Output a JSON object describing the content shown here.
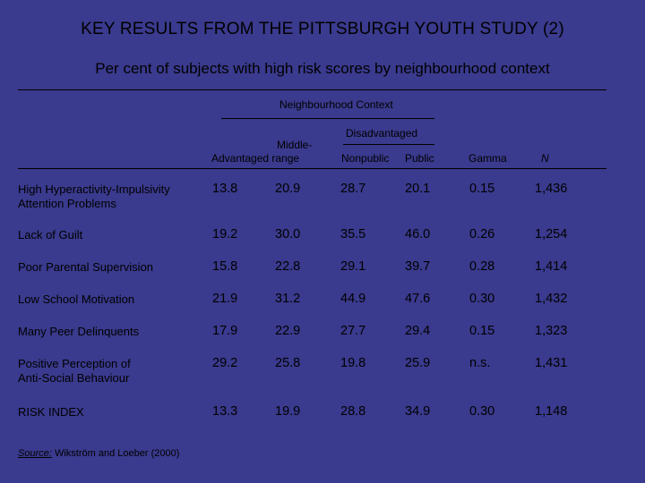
{
  "title": "KEY RESULTS FROM THE PITTSBURGH YOUTH STUDY (2)",
  "subtitle": "Per cent of subjects with high risk scores by neighbourhood context",
  "header": {
    "group": "Neighbourhood Context",
    "disadvantaged": "Disadvantaged",
    "middle_range_top": "Middle-",
    "advantaged_middle_bottom": "Advantaged range",
    "nonpublic": "Nonpublic",
    "public": "Public",
    "gamma": "Gamma",
    "n": "N"
  },
  "rows": [
    {
      "label1": "High Hyperactivity-Impulsivity",
      "label2": "Attention Problems",
      "cells": [
        "13.8",
        "20.9",
        "28.7",
        "20.1",
        "0.15",
        "1,436"
      ]
    },
    {
      "label1": "Lack of Guilt",
      "label2": "",
      "cells": [
        "19.2",
        "30.0",
        "35.5",
        "46.0",
        "0.26",
        "1,254"
      ]
    },
    {
      "label1": "Poor Parental Supervision",
      "label2": "",
      "cells": [
        "15.8",
        "22.8",
        "29.1",
        "39.7",
        "0.28",
        "1,414"
      ]
    },
    {
      "label1": "Low School Motivation",
      "label2": "",
      "cells": [
        "21.9",
        "31.2",
        "44.9",
        "47.6",
        "0.30",
        "1,432"
      ]
    },
    {
      "label1": "Many Peer Delinquents",
      "label2": "",
      "cells": [
        "17.9",
        "22.9",
        "27.7",
        "29.4",
        "0.15",
        "1,323"
      ]
    },
    {
      "label1": "Positive Perception of",
      "label2": "Anti-Social Behaviour",
      "cells": [
        "29.2",
        "25.8",
        "19.8",
        "25.9",
        "n.s.",
        "1,431"
      ]
    },
    {
      "label1": "RISK INDEX",
      "label2": "",
      "cells": [
        "13.3",
        "19.9",
        "28.8",
        "34.9",
        "0.30",
        "1,148"
      ]
    }
  ],
  "source": {
    "label": "Source:",
    "text": " Wikström and Loeber (2000)"
  }
}
